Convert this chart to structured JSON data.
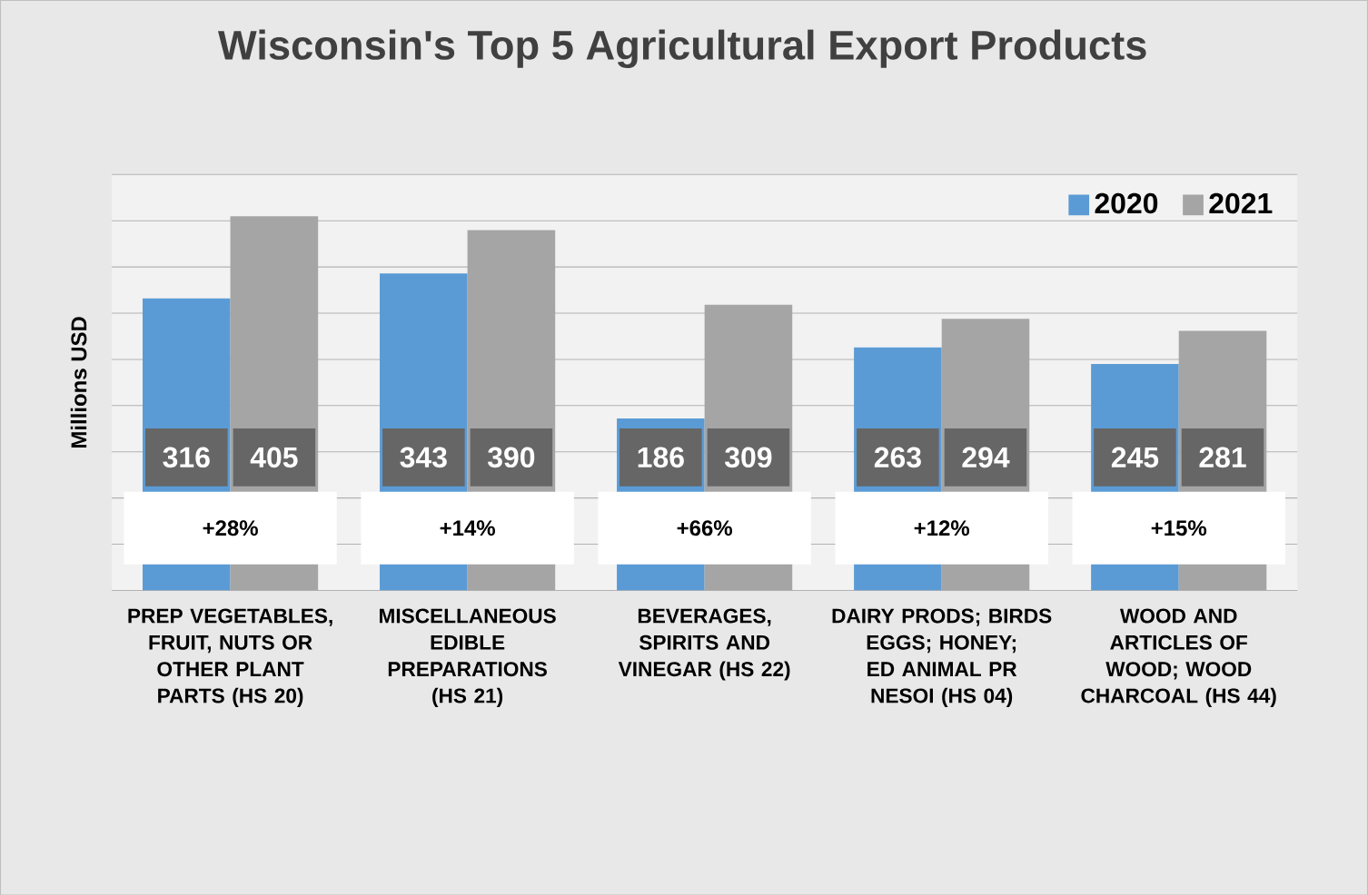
{
  "chart_data": {
    "type": "bar",
    "title": "Wisconsin's Top 5 Agricultural Export Products",
    "ylabel": "Millions USD",
    "categories": [
      "PREP VEGETABLES, FRUIT, NUTS OR OTHER PLANT PARTS (HS 20)",
      "MISCELLANEOUS EDIBLE PREPARATIONS (HS 21)",
      "BEVERAGES, SPIRITS AND VINEGAR (HS 22)",
      "DAIRY PRODS; BIRDS EGGS; HONEY; ED ANIMAL PR NESOI (HS 04)",
      "WOOD AND ARTICLES OF WOOD; WOOD CHARCOAL (HS 44)"
    ],
    "series": [
      {
        "name": "2020",
        "color": "#5b9bd5",
        "values": [
          316,
          343,
          186,
          263,
          245
        ]
      },
      {
        "name": "2021",
        "color": "#a5a5a5",
        "values": [
          405,
          390,
          309,
          294,
          281
        ]
      }
    ],
    "ylim": [
      0,
      450
    ],
    "yticks": [
      {
        "value": 0,
        "label": null
      },
      {
        "value": 50,
        "label": null
      },
      {
        "value": 100,
        "label": null
      },
      {
        "value": 150,
        "label": null
      },
      {
        "value": 200,
        "label": null
      },
      {
        "value": 250,
        "label": null
      },
      {
        "value": 300,
        "label": null
      },
      {
        "value": 350,
        "label": null
      },
      {
        "value": 400,
        "label": null
      },
      {
        "value": 450,
        "label": null
      }
    ],
    "tick_labels": "x",
    "grid": "y",
    "legend": "top right",
    "data_labels": true,
    "annotations": [
      "+28%",
      "+14%",
      "+66%",
      "+12%",
      "+15%"
    ]
  }
}
